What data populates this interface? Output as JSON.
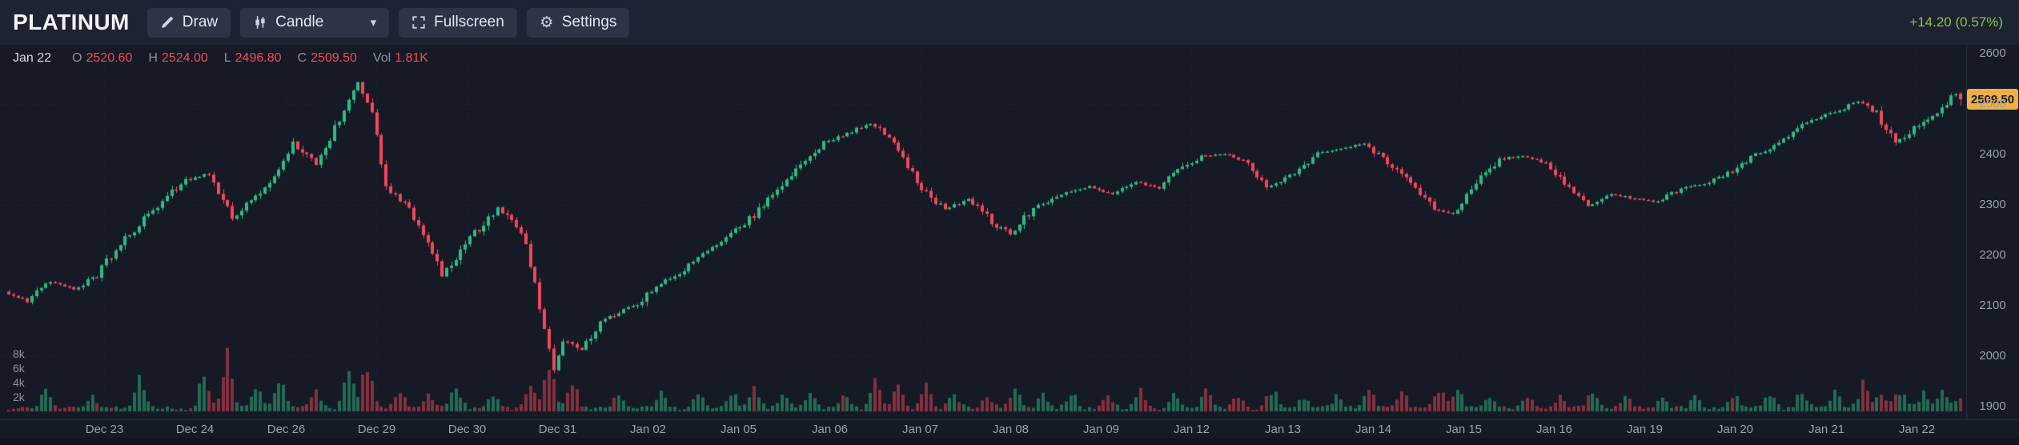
{
  "header": {
    "symbol": "PLATINUM",
    "change": "+14.20 (0.57%)"
  },
  "toolbar": {
    "draw": {
      "label": "Draw",
      "icon": "pencil-icon"
    },
    "chart_type": {
      "label": "Candle",
      "icon": "candle-icon"
    },
    "fullscreen": {
      "label": "Fullscreen",
      "icon": "fullscreen-icon"
    },
    "settings": {
      "label": "Settings",
      "icon": "gear-icon"
    }
  },
  "legend": {
    "date": "Jan 22",
    "items": [
      {
        "label": "O",
        "value": "2520.60"
      },
      {
        "label": "H",
        "value": "2524.00"
      },
      {
        "label": "L",
        "value": "2496.80"
      },
      {
        "label": "C",
        "value": "2509.50"
      },
      {
        "label": "Vol",
        "value": "1.81K"
      }
    ]
  },
  "price_axis": {
    "last_price": "2509.50"
  },
  "colors": {
    "up": "#2ebd85",
    "down": "#f6465d",
    "vol_up": "rgba(46,189,133,0.5)",
    "vol_down": "rgba(246,70,93,0.5)",
    "change": "#8bc34a",
    "badge_bg": "#efb041",
    "bg": "#151a24",
    "topbar_bg": "#1d2330",
    "button_bg": "#2e3443",
    "axis_line": "#2a3040",
    "grid": "rgba(140,150,170,0.14)"
  },
  "chart_data": {
    "type": "candlestick+volume",
    "title": "PLATINUM",
    "x_ticks": [
      "Dec 23",
      "Dec 24",
      "Dec 26",
      "Dec 29",
      "Dec 30",
      "Dec 31",
      "Jan 02",
      "Jan 05",
      "Jan 06",
      "Jan 07",
      "Jan 08",
      "Jan 09",
      "Jan 12",
      "Jan 13",
      "Jan 14",
      "Jan 15",
      "Jan 16",
      "Jan 19",
      "Jan 20",
      "Jan 21",
      "Jan 22"
    ],
    "y_ticks": [
      2600,
      2500,
      2400,
      2300,
      2200,
      2100,
      2000,
      1900
    ],
    "volume_ticks": [
      "8k",
      "6k",
      "4k",
      "2k"
    ],
    "ylim": [
      1890,
      2620
    ],
    "n_candles": 420,
    "last_candle": {
      "date": "Jan 22",
      "open": 2520.6,
      "high": 2524.0,
      "low": 2496.8,
      "close": 2509.5,
      "volume_k": 1.81
    },
    "price_path": [
      [
        0,
        2128
      ],
      [
        5,
        2108
      ],
      [
        10,
        2148
      ],
      [
        15,
        2132
      ],
      [
        20,
        2162
      ],
      [
        25,
        2222
      ],
      [
        31,
        2282
      ],
      [
        39,
        2350
      ],
      [
        44,
        2362
      ],
      [
        49,
        2272
      ],
      [
        56,
        2332
      ],
      [
        62,
        2420
      ],
      [
        67,
        2378
      ],
      [
        72,
        2470
      ],
      [
        76,
        2548
      ],
      [
        79,
        2482
      ],
      [
        82,
        2332
      ],
      [
        86,
        2302
      ],
      [
        90,
        2242
      ],
      [
        94,
        2162
      ],
      [
        100,
        2232
      ],
      [
        106,
        2296
      ],
      [
        110,
        2256
      ],
      [
        112,
        2226
      ],
      [
        118,
        1974
      ],
      [
        120,
        2036
      ],
      [
        124,
        2012
      ],
      [
        128,
        2066
      ],
      [
        132,
        2086
      ],
      [
        136,
        2102
      ],
      [
        140,
        2142
      ],
      [
        145,
        2166
      ],
      [
        150,
        2202
      ],
      [
        155,
        2236
      ],
      [
        160,
        2272
      ],
      [
        166,
        2326
      ],
      [
        171,
        2386
      ],
      [
        176,
        2422
      ],
      [
        181,
        2442
      ],
      [
        186,
        2462
      ],
      [
        190,
        2432
      ],
      [
        194,
        2372
      ],
      [
        198,
        2322
      ],
      [
        202,
        2292
      ],
      [
        207,
        2312
      ],
      [
        212,
        2266
      ],
      [
        216,
        2242
      ],
      [
        221,
        2292
      ],
      [
        227,
        2322
      ],
      [
        233,
        2336
      ],
      [
        238,
        2322
      ],
      [
        243,
        2346
      ],
      [
        248,
        2332
      ],
      [
        253,
        2376
      ],
      [
        257,
        2396
      ],
      [
        262,
        2402
      ],
      [
        267,
        2382
      ],
      [
        271,
        2332
      ],
      [
        276,
        2356
      ],
      [
        282,
        2402
      ],
      [
        288,
        2412
      ],
      [
        292,
        2422
      ],
      [
        297,
        2386
      ],
      [
        302,
        2342
      ],
      [
        307,
        2296
      ],
      [
        311,
        2282
      ],
      [
        316,
        2342
      ],
      [
        321,
        2392
      ],
      [
        326,
        2396
      ],
      [
        331,
        2382
      ],
      [
        336,
        2332
      ],
      [
        340,
        2296
      ],
      [
        345,
        2322
      ],
      [
        350,
        2312
      ],
      [
        355,
        2306
      ],
      [
        360,
        2332
      ],
      [
        365,
        2342
      ],
      [
        370,
        2362
      ],
      [
        375,
        2396
      ],
      [
        380,
        2416
      ],
      [
        385,
        2452
      ],
      [
        390,
        2476
      ],
      [
        395,
        2492
      ],
      [
        398,
        2506
      ],
      [
        402,
        2482
      ],
      [
        406,
        2422
      ],
      [
        410,
        2452
      ],
      [
        413,
        2472
      ],
      [
        416,
        2496
      ],
      [
        419,
        2521
      ]
    ],
    "volume_spikes_k": [
      [
        8,
        3.2
      ],
      [
        18,
        2.2
      ],
      [
        28,
        4.5
      ],
      [
        42,
        6.5
      ],
      [
        47,
        8.6
      ],
      [
        53,
        3.5
      ],
      [
        58,
        5.2
      ],
      [
        66,
        3.0
      ],
      [
        73,
        6.2
      ],
      [
        77,
        7.8
      ],
      [
        84,
        3.4
      ],
      [
        90,
        2.6
      ],
      [
        96,
        4.2
      ],
      [
        104,
        2.4
      ],
      [
        112,
        5.0
      ],
      [
        116,
        7.2
      ],
      [
        121,
        4.0
      ],
      [
        131,
        2.2
      ],
      [
        140,
        2.4
      ],
      [
        148,
        2.8
      ],
      [
        155,
        3.0
      ],
      [
        160,
        3.4
      ],
      [
        166,
        2.6
      ],
      [
        172,
        3.2
      ],
      [
        179,
        2.4
      ],
      [
        186,
        4.8
      ],
      [
        191,
        4.2
      ],
      [
        197,
        3.8
      ],
      [
        203,
        2.6
      ],
      [
        210,
        2.2
      ],
      [
        216,
        3.6
      ],
      [
        222,
        2.4
      ],
      [
        228,
        3.0
      ],
      [
        236,
        2.2
      ],
      [
        243,
        2.6
      ],
      [
        250,
        2.0
      ],
      [
        257,
        3.0
      ],
      [
        264,
        2.2
      ],
      [
        271,
        3.4
      ],
      [
        278,
        2.4
      ],
      [
        285,
        2.2
      ],
      [
        292,
        3.0
      ],
      [
        299,
        2.4
      ],
      [
        307,
        3.4
      ],
      [
        311,
        2.8
      ],
      [
        318,
        2.2
      ],
      [
        326,
        2.6
      ],
      [
        333,
        2.0
      ],
      [
        340,
        3.0
      ],
      [
        347,
        2.2
      ],
      [
        355,
        2.0
      ],
      [
        362,
        2.4
      ],
      [
        370,
        2.6
      ],
      [
        378,
        2.2
      ],
      [
        385,
        3.0
      ],
      [
        392,
        2.6
      ],
      [
        398,
        4.0
      ],
      [
        402,
        2.8
      ],
      [
        406,
        3.4
      ],
      [
        411,
        2.4
      ],
      [
        415,
        3.0
      ],
      [
        419,
        1.81
      ]
    ]
  }
}
